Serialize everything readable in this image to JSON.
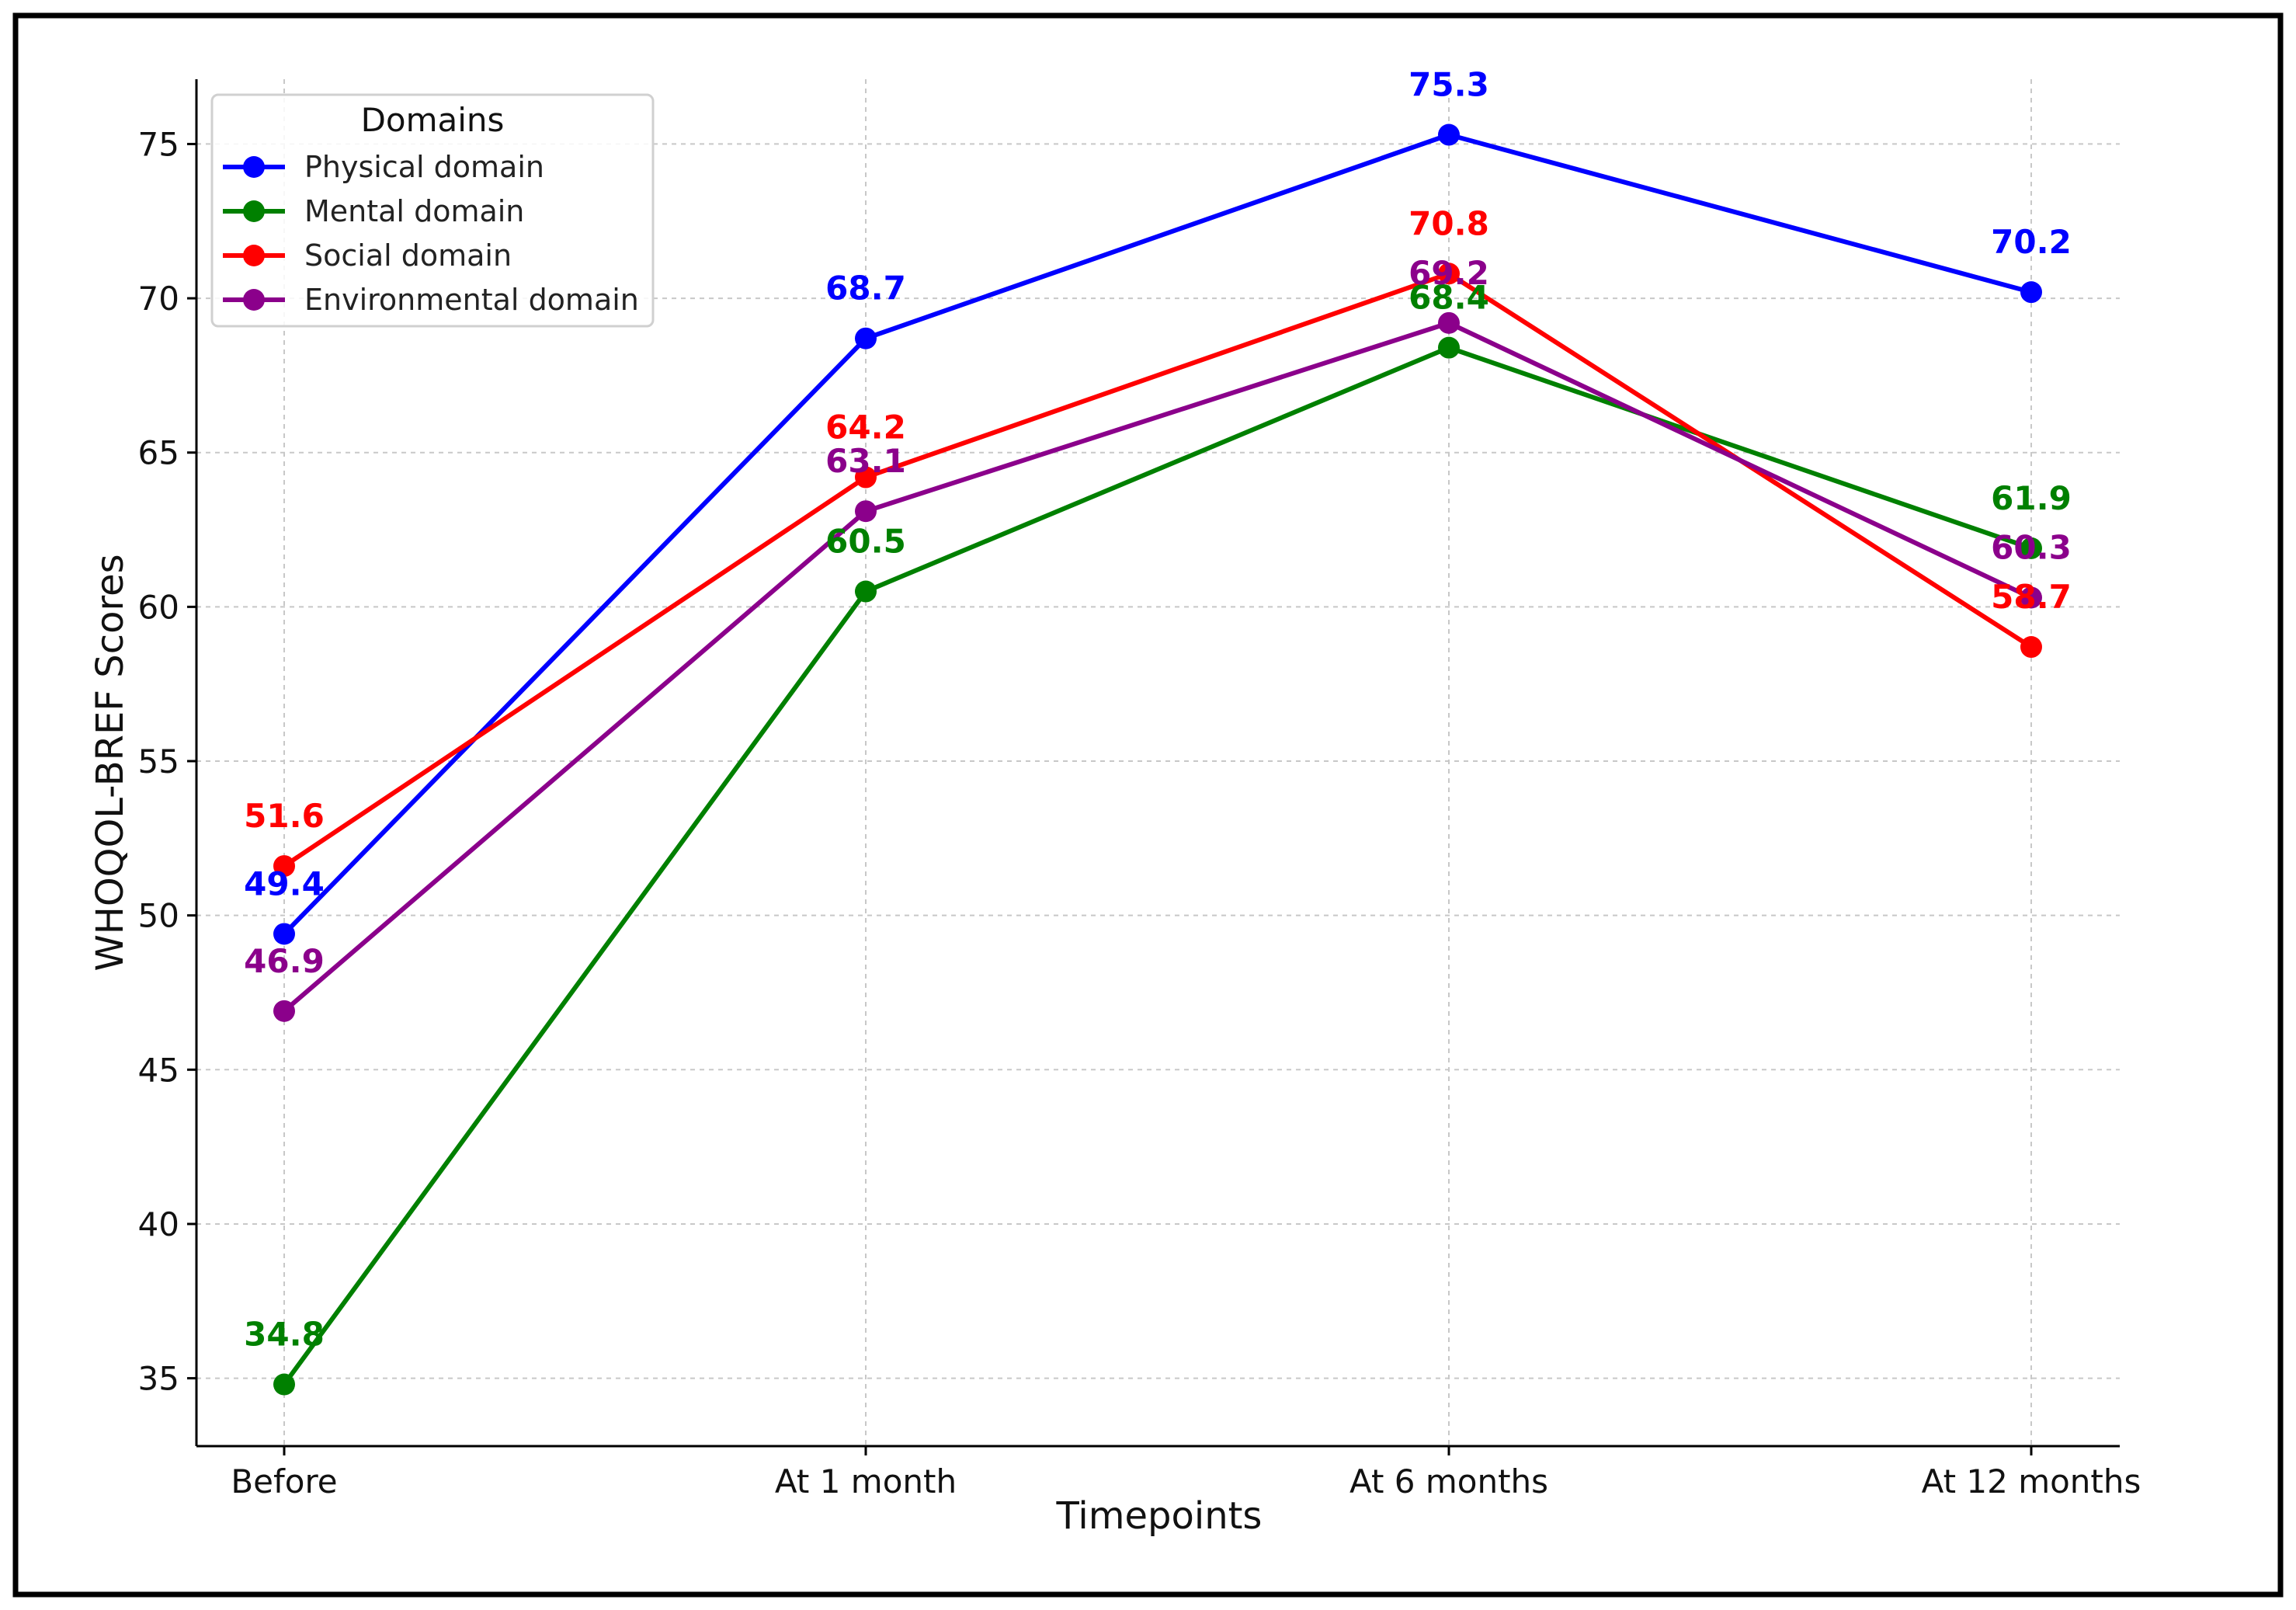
{
  "chart_data": {
    "type": "line",
    "title": "",
    "xlabel": "Timepoints",
    "ylabel": "WHOQOL-BREF Scores",
    "categories": [
      "Before",
      "At 1 month",
      "At 6 months",
      "At 12 months"
    ],
    "yticks": [
      35,
      40,
      45,
      50,
      55,
      60,
      65,
      70,
      75
    ],
    "ylim": [
      32.8,
      77.1
    ],
    "grid": true,
    "legend": {
      "title": "Domains",
      "placement": "top-left"
    },
    "series": [
      {
        "name": "Physical domain",
        "color": "#0000ff",
        "values": [
          49.4,
          68.7,
          75.3,
          70.2
        ],
        "labels": [
          "49.4",
          "68.7",
          "75.3",
          "70.2"
        ]
      },
      {
        "name": "Mental domain",
        "color": "#008000",
        "values": [
          34.8,
          60.5,
          68.4,
          61.9
        ],
        "labels": [
          "34.8",
          "60.5",
          "68.4",
          "61.9"
        ]
      },
      {
        "name": "Social domain",
        "color": "#ff0000",
        "values": [
          51.6,
          64.2,
          70.8,
          58.7
        ],
        "labels": [
          "51.6",
          "64.2",
          "70.8",
          "58.7"
        ]
      },
      {
        "name": "Environmental domain",
        "color": "#8b008b",
        "values": [
          46.9,
          63.1,
          69.2,
          60.3
        ],
        "labels": [
          "46.9",
          "63.1",
          "69.2",
          "60.3"
        ]
      }
    ]
  }
}
